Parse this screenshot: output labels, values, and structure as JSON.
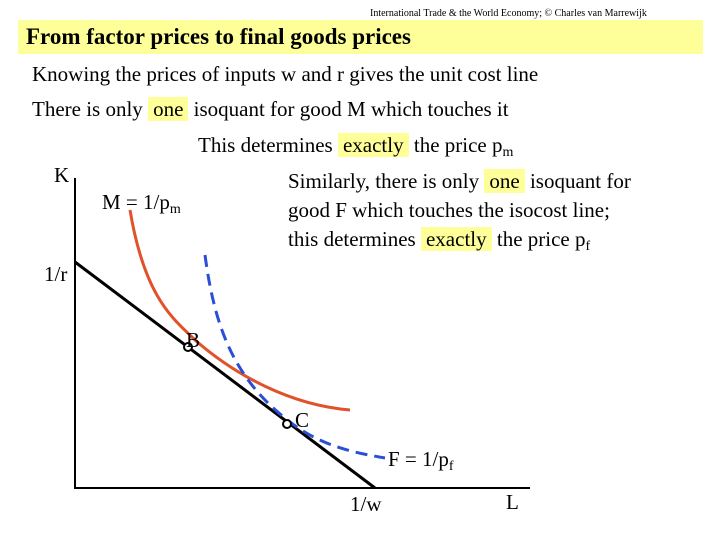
{
  "header": "International Trade & the World Economy; © Charles van Marrewijk",
  "title": "From factor prices to final goods prices",
  "lines": {
    "l1": "Knowing the prices of inputs w and r gives the unit cost line",
    "l2_pre": "There is only",
    "l2_hl": "one",
    "l2_post": "isoquant for good M which touches it",
    "l3_pre": "This determines",
    "l3_hl": "exactly",
    "l3_post": "the price p",
    "l3_sub": "m",
    "l4_pre": "Similarly, there is only",
    "l4_hl": "one",
    "l4_post": "isoquant for",
    "l5": "good F which touches the isocost line;",
    "l6_pre": "this determines",
    "l6_hl": "exactly",
    "l6_post": "the price p",
    "l6_sub": "f"
  },
  "labels": {
    "k_axis": "K",
    "l_axis": "L",
    "m_isoquant": "M = 1/p",
    "m_sub": "m",
    "f_isoquant": "F = 1/p",
    "f_sub": "f",
    "y_intercept": "1/r",
    "x_intercept": "1/w",
    "point_b": "B",
    "point_c": "C"
  },
  "colors": {
    "highlight": "#ffff99",
    "m_curve": "#e0522a",
    "f_curve": "#2a4fd6",
    "isocost": "#000000"
  }
}
